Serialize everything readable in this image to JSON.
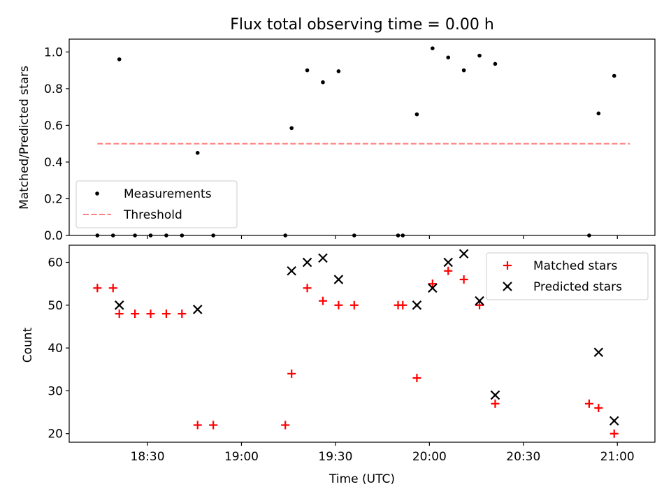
{
  "chart_data": [
    {
      "type": "scatter",
      "title": "Flux total observing time = 0.00 h",
      "xlabel": "",
      "ylabel": "Matched/Predicted stars",
      "xlim_minutes": [
        1085,
        1272
      ],
      "ylim": [
        0,
        1.07
      ],
      "yticks": [
        0.0,
        0.2,
        0.4,
        0.6,
        0.8,
        1.0
      ],
      "yticklabels": [
        "0.0",
        "0.2",
        "0.4",
        "0.6",
        "0.8",
        "1.0"
      ],
      "xticks_minutes": [
        1110,
        1140,
        1170,
        1200,
        1230,
        1260
      ],
      "series": [
        {
          "name": "Measurements",
          "marker": "dot",
          "color": "#000000",
          "points": [
            [
              1094,
              0.0
            ],
            [
              1099,
              0.0
            ],
            [
              1101,
              0.96
            ],
            [
              1106,
              0.0
            ],
            [
              1111,
              0.0
            ],
            [
              1116,
              0.0
            ],
            [
              1121,
              0.0
            ],
            [
              1126,
              0.45
            ],
            [
              1131,
              0.0
            ],
            [
              1154,
              0.0
            ],
            [
              1156,
              0.585
            ],
            [
              1161,
              0.9
            ],
            [
              1166,
              0.835
            ],
            [
              1171,
              0.895
            ],
            [
              1176,
              0.0
            ],
            [
              1190,
              0.0
            ],
            [
              1191.5,
              0.0
            ],
            [
              1196,
              0.66
            ],
            [
              1201,
              1.02
            ],
            [
              1206,
              0.97
            ],
            [
              1211,
              0.9
            ],
            [
              1216,
              0.98
            ],
            [
              1221,
              0.935
            ],
            [
              1251,
              0.0
            ],
            [
              1254,
              0.665
            ],
            [
              1259,
              0.87
            ]
          ]
        },
        {
          "name": "Threshold",
          "marker": "dashed-line",
          "color": "#ff8080",
          "points": [
            [
              1094,
              0.5
            ],
            [
              1264,
              0.5
            ]
          ]
        }
      ],
      "legend": {
        "placement": "lower-left",
        "entries": [
          "Measurements",
          "Threshold"
        ]
      }
    },
    {
      "type": "scatter",
      "title": "",
      "xlabel": "Time (UTC)",
      "ylabel": "Count",
      "xlim_minutes": [
        1085,
        1272
      ],
      "ylim": [
        18,
        64
      ],
      "yticks": [
        20,
        30,
        40,
        50,
        60
      ],
      "yticklabels": [
        "20",
        "30",
        "40",
        "50",
        "60"
      ],
      "xticks_minutes": [
        1110,
        1140,
        1170,
        1200,
        1230,
        1260
      ],
      "xticklabels": [
        "18:30",
        "19:00",
        "19:30",
        "20:00",
        "20:30",
        "21:00"
      ],
      "series": [
        {
          "name": "Matched stars",
          "marker": "plus",
          "color": "#ff0000",
          "points": [
            [
              1094,
              54
            ],
            [
              1099,
              54
            ],
            [
              1101,
              48
            ],
            [
              1106,
              48
            ],
            [
              1111,
              48
            ],
            [
              1116,
              48
            ],
            [
              1121,
              48
            ],
            [
              1126,
              22
            ],
            [
              1131,
              22
            ],
            [
              1154,
              22
            ],
            [
              1156,
              34
            ],
            [
              1161,
              54
            ],
            [
              1166,
              51
            ],
            [
              1171,
              50
            ],
            [
              1176,
              50
            ],
            [
              1190,
              50
            ],
            [
              1191.5,
              50
            ],
            [
              1196,
              33
            ],
            [
              1201,
              55
            ],
            [
              1206,
              58
            ],
            [
              1211,
              56
            ],
            [
              1216,
              50
            ],
            [
              1221,
              27
            ],
            [
              1251,
              27
            ],
            [
              1254,
              26
            ],
            [
              1259,
              20
            ]
          ]
        },
        {
          "name": "Predicted stars",
          "marker": "x",
          "color": "#000000",
          "points": [
            [
              1101,
              50
            ],
            [
              1126,
              49
            ],
            [
              1156,
              58
            ],
            [
              1161,
              60
            ],
            [
              1166,
              61
            ],
            [
              1171,
              56
            ],
            [
              1196,
              50
            ],
            [
              1201,
              54
            ],
            [
              1206,
              60
            ],
            [
              1211,
              62
            ],
            [
              1216,
              51
            ],
            [
              1221,
              29
            ],
            [
              1254,
              39
            ],
            [
              1259,
              23
            ]
          ]
        }
      ],
      "legend": {
        "placement": "upper-right",
        "entries": [
          "Matched stars",
          "Predicted stars"
        ]
      }
    }
  ]
}
